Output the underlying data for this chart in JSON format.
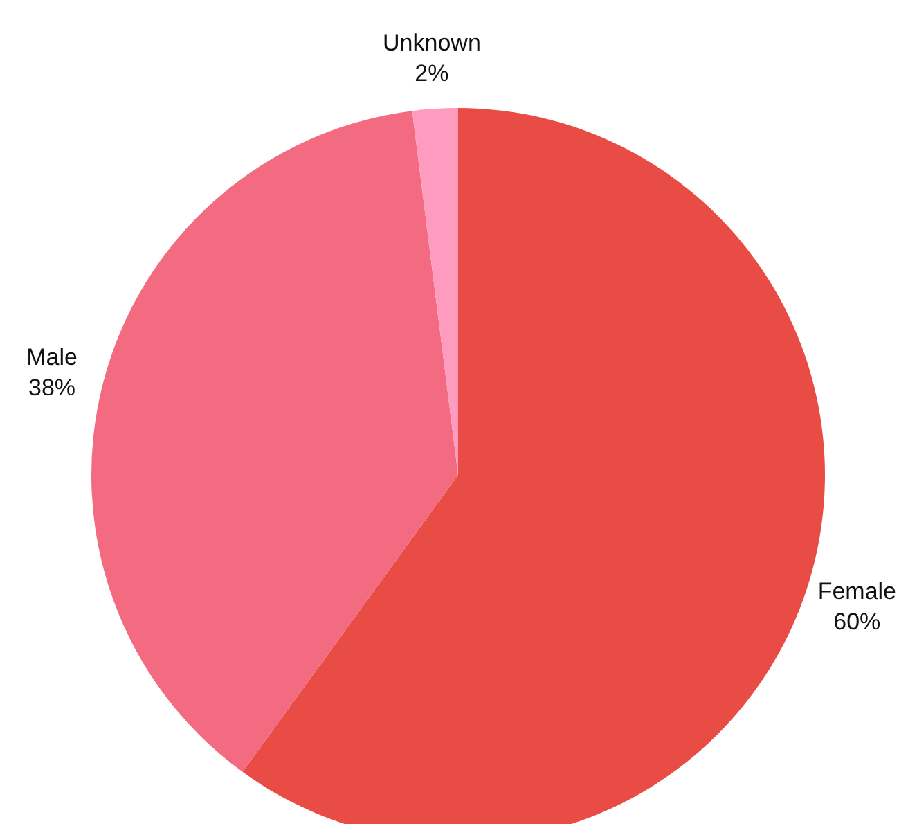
{
  "chart_data": {
    "type": "pie",
    "categories": [
      "Female",
      "Male",
      "Unknown"
    ],
    "values": [
      60,
      38,
      2
    ],
    "value_labels": [
      "60%",
      "38%",
      "2%"
    ],
    "colors": [
      "#e84c45",
      "#f26b80",
      "#ff9bbf"
    ],
    "legend": false
  }
}
